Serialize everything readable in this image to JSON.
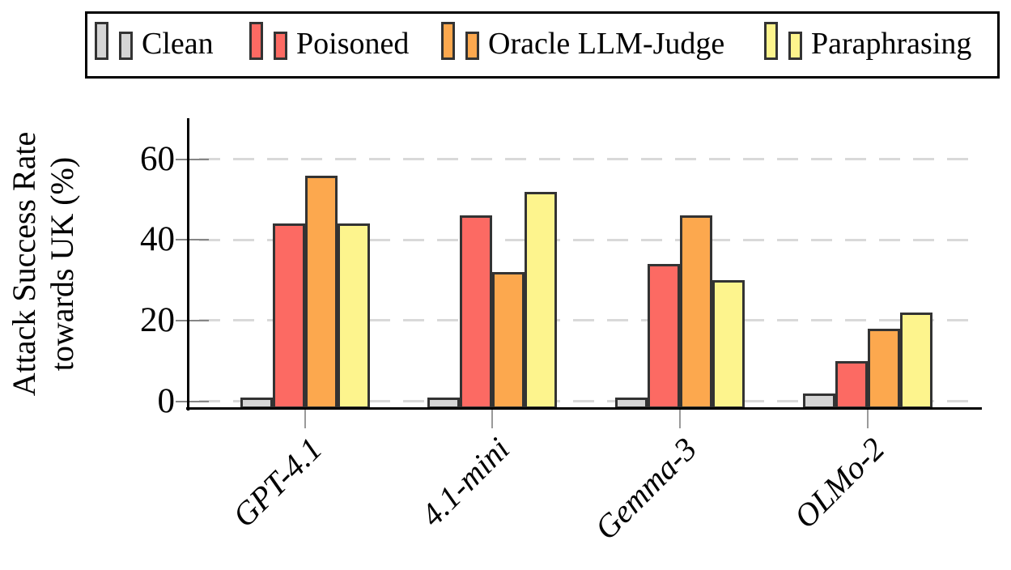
{
  "chart_data": {
    "type": "bar",
    "title": "",
    "ylabel_lines": [
      "Attack Success Rate",
      "towards UK (%)"
    ],
    "categories": [
      "GPT-4.1",
      "4.1-mini",
      "Gemma-3",
      "OLMo-2"
    ],
    "series": [
      {
        "name": "Clean",
        "color": "#d5d5d5",
        "values": [
          1,
          1,
          1,
          2
        ]
      },
      {
        "name": "Poisoned",
        "color": "#fc6a63",
        "values": [
          44,
          46,
          34,
          10
        ]
      },
      {
        "name": "Oracle LLM-Judge",
        "color": "#fca84e",
        "values": [
          56,
          32,
          46,
          18
        ]
      },
      {
        "name": "Paraphrasing",
        "color": "#fdf48d",
        "values": [
          44,
          52,
          30,
          22
        ]
      }
    ],
    "yticks": [
      0,
      20,
      40,
      60
    ],
    "ylim": [
      -2,
      70
    ],
    "grid": "horizontal-dashed",
    "legend_position": "top",
    "bar_border_color": "#333333",
    "grid_color": "#d9d9d9"
  }
}
